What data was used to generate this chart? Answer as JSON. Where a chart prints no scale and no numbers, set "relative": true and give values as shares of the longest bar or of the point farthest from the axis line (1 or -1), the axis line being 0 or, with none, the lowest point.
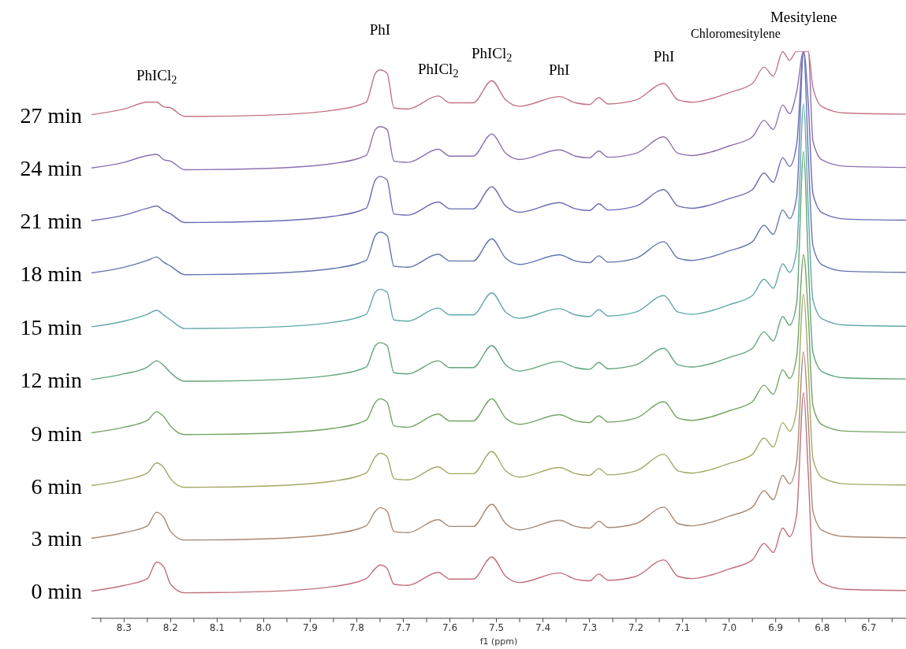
{
  "chart_data": {
    "type": "line",
    "relative": true,
    "xlabel": "f1 (ppm)",
    "xlim": [
      8.37,
      6.62
    ],
    "xticks": [
      {
        "value": 8.35,
        "label": null
      },
      8.3,
      {
        "value": 8.25,
        "label": null
      },
      8.2,
      {
        "value": 8.15,
        "label": null
      },
      8.1,
      {
        "value": 8.05,
        "label": null
      },
      {
        "value": 8.0,
        "label": "8.0"
      },
      {
        "value": 7.95,
        "label": null
      },
      7.9,
      {
        "value": 7.85,
        "label": null
      },
      7.8,
      {
        "value": 7.75,
        "label": null
      },
      7.7,
      {
        "value": 7.65,
        "label": null
      },
      7.6,
      {
        "value": 7.55,
        "label": null
      },
      7.5,
      {
        "value": 7.45,
        "label": null
      },
      7.4,
      {
        "value": 7.35,
        "label": null
      },
      7.3,
      {
        "value": 7.25,
        "label": null
      },
      7.2,
      {
        "value": 7.15,
        "label": null
      },
      7.1,
      {
        "value": 7.05,
        "label": null
      },
      {
        "value": 7.0,
        "label": "7.0"
      },
      {
        "value": 6.95,
        "label": null
      },
      6.9,
      {
        "value": 6.85,
        "label": null
      },
      6.8,
      {
        "value": 6.75,
        "label": null
      },
      6.7,
      {
        "value": 6.65,
        "label": null
      }
    ],
    "x": [
      8.37,
      8.3,
      8.25,
      8.23,
      8.215,
      8.2,
      8.17,
      8.0,
      7.85,
      7.78,
      7.76,
      7.75,
      7.735,
      7.72,
      7.69,
      7.625,
      7.6,
      7.55,
      7.51,
      7.48,
      7.45,
      7.365,
      7.33,
      7.3,
      7.28,
      7.26,
      7.2,
      7.14,
      7.11,
      7.08,
      7.04,
      7.0,
      6.95,
      6.925,
      6.905,
      6.885,
      6.87,
      6.855,
      6.84,
      6.83,
      6.82,
      6.8,
      6.75,
      6.62
    ],
    "series": [
      {
        "name": "0 min",
        "color": "#c0707c",
        "values": [
          0.048,
          0.058,
          0.07,
          0.099,
          0.091,
          0.06,
          0.045,
          0.047,
          0.056,
          0.07,
          0.088,
          0.094,
          0.088,
          0.06,
          0.058,
          0.081,
          0.069,
          0.069,
          0.108,
          0.074,
          0.063,
          0.08,
          0.069,
          0.066,
          0.078,
          0.067,
          0.074,
          0.103,
          0.074,
          0.07,
          0.076,
          0.087,
          0.103,
          0.132,
          0.116,
          0.159,
          0.144,
          0.182,
          0.398,
          0.256,
          0.096,
          0.062,
          0.051,
          0.049
        ]
      },
      {
        "name": "3 min",
        "color": "#a88a74",
        "values": [
          0.141,
          0.151,
          0.163,
          0.187,
          0.178,
          0.153,
          0.138,
          0.14,
          0.149,
          0.163,
          0.189,
          0.195,
          0.189,
          0.153,
          0.151,
          0.174,
          0.162,
          0.162,
          0.201,
          0.167,
          0.156,
          0.173,
          0.162,
          0.159,
          0.171,
          0.16,
          0.167,
          0.196,
          0.167,
          0.163,
          0.169,
          0.18,
          0.196,
          0.225,
          0.209,
          0.252,
          0.237,
          0.275,
          0.47,
          0.349,
          0.189,
          0.155,
          0.144,
          0.142
        ]
      },
      {
        "name": "6 min",
        "color": "#a4a866",
        "values": [
          0.234,
          0.244,
          0.256,
          0.274,
          0.266,
          0.246,
          0.231,
          0.233,
          0.242,
          0.256,
          0.285,
          0.291,
          0.285,
          0.246,
          0.244,
          0.267,
          0.255,
          0.255,
          0.294,
          0.26,
          0.249,
          0.266,
          0.255,
          0.252,
          0.264,
          0.253,
          0.26,
          0.289,
          0.26,
          0.256,
          0.262,
          0.273,
          0.289,
          0.318,
          0.302,
          0.345,
          0.33,
          0.368,
          0.572,
          0.442,
          0.282,
          0.248,
          0.237,
          0.235
        ]
      },
      {
        "name": "9 min",
        "color": "#74a464",
        "values": [
          0.327,
          0.337,
          0.349,
          0.364,
          0.356,
          0.339,
          0.324,
          0.326,
          0.335,
          0.349,
          0.381,
          0.387,
          0.381,
          0.339,
          0.337,
          0.36,
          0.348,
          0.348,
          0.387,
          0.353,
          0.342,
          0.359,
          0.348,
          0.345,
          0.357,
          0.346,
          0.353,
          0.382,
          0.353,
          0.349,
          0.355,
          0.366,
          0.382,
          0.411,
          0.395,
          0.438,
          0.423,
          0.461,
          0.641,
          0.535,
          0.375,
          0.341,
          0.33,
          0.328
        ]
      },
      {
        "name": "12 min",
        "color": "#62a47a",
        "values": [
          0.421,
          0.431,
          0.443,
          0.454,
          0.446,
          0.433,
          0.418,
          0.42,
          0.429,
          0.443,
          0.481,
          0.486,
          0.481,
          0.433,
          0.431,
          0.454,
          0.442,
          0.442,
          0.481,
          0.447,
          0.436,
          0.453,
          0.442,
          0.439,
          0.451,
          0.44,
          0.447,
          0.476,
          0.447,
          0.443,
          0.449,
          0.46,
          0.476,
          0.505,
          0.489,
          0.532,
          0.517,
          0.555,
          0.823,
          0.629,
          0.469,
          0.435,
          0.424,
          0.422
        ]
      },
      {
        "name": "15 min",
        "color": "#62a8aa",
        "values": [
          0.514,
          0.524,
          0.536,
          0.543,
          0.535,
          0.526,
          0.511,
          0.513,
          0.522,
          0.536,
          0.575,
          0.58,
          0.575,
          0.526,
          0.524,
          0.547,
          0.535,
          0.535,
          0.574,
          0.54,
          0.529,
          0.546,
          0.535,
          0.532,
          0.544,
          0.533,
          0.54,
          0.569,
          0.54,
          0.536,
          0.542,
          0.553,
          0.569,
          0.598,
          0.582,
          0.625,
          0.61,
          0.648,
          0.907,
          0.722,
          0.562,
          0.528,
          0.517,
          0.515
        ]
      },
      {
        "name": "18 min",
        "color": "#6474b0",
        "values": [
          0.609,
          0.619,
          0.631,
          0.637,
          0.628,
          0.621,
          0.606,
          0.608,
          0.617,
          0.631,
          0.675,
          0.681,
          0.675,
          0.621,
          0.619,
          0.642,
          0.63,
          0.63,
          0.669,
          0.635,
          0.624,
          0.641,
          0.63,
          0.627,
          0.639,
          0.628,
          0.635,
          0.664,
          0.635,
          0.631,
          0.637,
          0.648,
          0.664,
          0.693,
          0.677,
          0.72,
          0.705,
          0.743,
          1,
          0.817,
          0.657,
          0.623,
          0.612,
          0.61
        ]
      },
      {
        "name": "21 min",
        "color": "#6a6cb4",
        "values": [
          0.701,
          0.711,
          0.723,
          0.727,
          0.719,
          0.713,
          0.698,
          0.7,
          0.709,
          0.723,
          0.773,
          0.779,
          0.773,
          0.713,
          0.711,
          0.734,
          0.722,
          0.722,
          0.761,
          0.727,
          0.716,
          0.733,
          0.722,
          0.719,
          0.731,
          0.72,
          0.727,
          0.756,
          0.727,
          0.723,
          0.729,
          0.74,
          0.756,
          0.785,
          0.769,
          0.812,
          0.797,
          0.835,
          1,
          0.909,
          0.749,
          0.715,
          0.704,
          0.702
        ]
      },
      {
        "name": "24 min",
        "color": "#8c72b2",
        "values": [
          0.794,
          0.804,
          0.816,
          0.818,
          0.809,
          0.806,
          0.791,
          0.793,
          0.802,
          0.816,
          0.862,
          0.867,
          0.862,
          0.806,
          0.804,
          0.827,
          0.815,
          0.815,
          0.854,
          0.82,
          0.809,
          0.826,
          0.815,
          0.812,
          0.824,
          0.813,
          0.82,
          0.849,
          0.82,
          0.816,
          0.822,
          0.833,
          0.849,
          0.878,
          0.862,
          0.905,
          0.89,
          0.928,
          1,
          1,
          0.842,
          0.808,
          0.797,
          0.795
        ]
      },
      {
        "name": "27 min",
        "color": "#c47484",
        "values": [
          0.888,
          0.898,
          0.91,
          0.91,
          0.902,
          0.9,
          0.885,
          0.887,
          0.896,
          0.91,
          0.961,
          0.967,
          0.961,
          0.9,
          0.898,
          0.921,
          0.909,
          0.909,
          0.948,
          0.914,
          0.903,
          0.92,
          0.909,
          0.906,
          0.918,
          0.907,
          0.914,
          0.943,
          0.914,
          0.91,
          0.916,
          0.927,
          0.943,
          0.972,
          0.956,
          0.999,
          0.984,
          1,
          1,
          1,
          0.936,
          0.902,
          0.891,
          0.889
        ]
      }
    ],
    "annotations": [
      {
        "text": "PhICl$_{2}$",
        "x": 8.23,
        "y": 0.91
      },
      {
        "text": "PhI",
        "x": 7.75,
        "y": 0.967
      },
      {
        "text": "PhICl$_{2}$",
        "x": 7.625,
        "y": 0.921
      },
      {
        "text": "PhICl$_{2}$",
        "x": 7.51,
        "y": 0.948
      },
      {
        "text": "PhI",
        "x": 7.365,
        "y": 0.92
      },
      {
        "text": "PhI",
        "x": 7.14,
        "y": 0.943
      },
      "Chloromesitylene",
      {
        "text": "Mesitylene",
        "x": 6.84,
        "y": 1
      }
    ]
  }
}
